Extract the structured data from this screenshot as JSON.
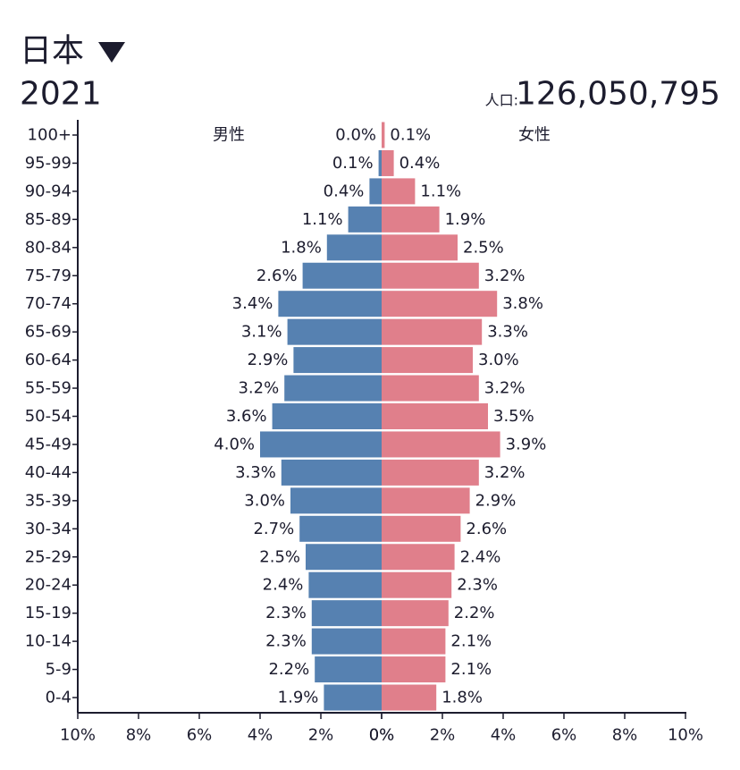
{
  "title": "日本",
  "year": "2021",
  "population_label": "人口:",
  "population": "126,050,795",
  "chart_data": {
    "type": "pyramid",
    "categories": [
      "100+",
      "95-99",
      "90-94",
      "85-89",
      "80-84",
      "75-79",
      "70-74",
      "65-69",
      "60-64",
      "55-59",
      "50-54",
      "45-49",
      "40-44",
      "35-39",
      "30-34",
      "25-29",
      "20-24",
      "15-19",
      "10-14",
      "5-9",
      "0-4"
    ],
    "series": [
      {
        "name": "男性",
        "color": "#5681b1",
        "values": [
          0.0,
          0.1,
          0.4,
          1.1,
          1.8,
          2.6,
          3.4,
          3.1,
          2.9,
          3.2,
          3.6,
          4.0,
          3.3,
          3.0,
          2.7,
          2.5,
          2.4,
          2.3,
          2.3,
          2.2,
          1.9
        ],
        "value_labels": [
          "0.0%",
          "0.1%",
          "0.4%",
          "1.1%",
          "1.8%",
          "2.6%",
          "3.4%",
          "3.1%",
          "2.9%",
          "3.2%",
          "3.6%",
          "4.0%",
          "3.3%",
          "3.0%",
          "2.7%",
          "2.5%",
          "2.4%",
          "2.3%",
          "2.3%",
          "2.2%",
          "1.9%"
        ]
      },
      {
        "name": "女性",
        "color": "#e07f8b",
        "values": [
          0.1,
          0.4,
          1.1,
          1.9,
          2.5,
          3.2,
          3.8,
          3.3,
          3.0,
          3.2,
          3.5,
          3.9,
          3.2,
          2.9,
          2.6,
          2.4,
          2.3,
          2.2,
          2.1,
          2.1,
          1.8
        ],
        "value_labels": [
          "0.1%",
          "0.4%",
          "1.1%",
          "1.9%",
          "2.5%",
          "3.2%",
          "3.8%",
          "3.3%",
          "3.0%",
          "3.2%",
          "3.5%",
          "3.9%",
          "3.2%",
          "2.9%",
          "2.6%",
          "2.4%",
          "2.3%",
          "2.2%",
          "2.1%",
          "2.1%",
          "1.8%"
        ]
      }
    ],
    "xlim": [
      0,
      10
    ],
    "xticks": [
      {
        "value": 0,
        "label": "0%"
      },
      {
        "value": 2,
        "label": "2%"
      },
      {
        "value": 4,
        "label": "4%"
      },
      {
        "value": 6,
        "label": "6%"
      },
      {
        "value": 8,
        "label": "8%"
      },
      {
        "value": 10,
        "label": "10%"
      }
    ]
  }
}
